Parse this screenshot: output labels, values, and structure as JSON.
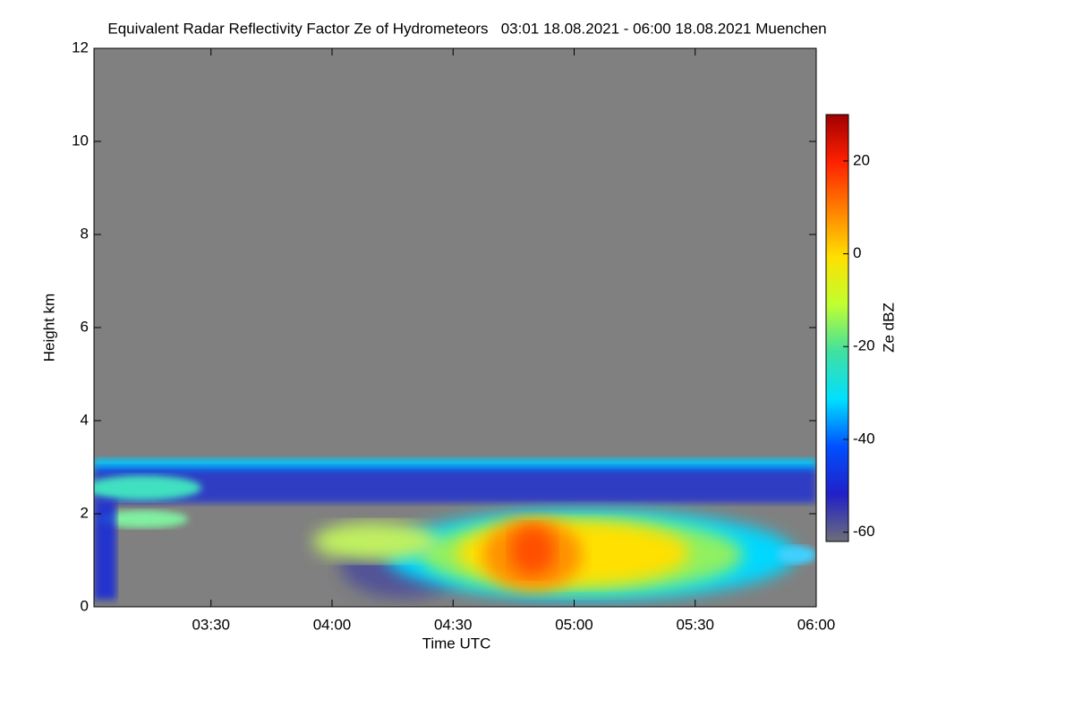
{
  "chart_data": {
    "type": "heatmap",
    "title": "Equivalent Radar Reflectivity Factor Ze of Hydrometeors   03:01 18.08.2021 - 06:00 18.08.2021 Muenchen",
    "x_label": "Time UTC",
    "y_label": "Height km",
    "xlim": [
      181,
      360
    ],
    "xticks": [
      {
        "value": 210,
        "label": "03:30"
      },
      {
        "value": 240,
        "label": "04:00"
      },
      {
        "value": 270,
        "label": "04:30"
      },
      {
        "value": 300,
        "label": "05:00"
      },
      {
        "value": 330,
        "label": "05:30"
      },
      {
        "value": 360,
        "label": "06:00"
      }
    ],
    "ylim": [
      0,
      12
    ],
    "yticks": [
      0,
      2,
      4,
      6,
      8,
      10,
      12
    ],
    "colorbar": {
      "label": "Ze dBZ",
      "lim": [
        -62,
        30
      ],
      "ticks": [
        -60,
        -40,
        -20,
        0,
        20
      ],
      "colors": [
        "#6e6e7a",
        "#2020c8",
        "#0050ff",
        "#00e0ff",
        "#40e0a0",
        "#c0ff30",
        "#ffe000",
        "#ff8000",
        "#ff2000",
        "#a00000"
      ]
    },
    "background": "#808080"
  }
}
